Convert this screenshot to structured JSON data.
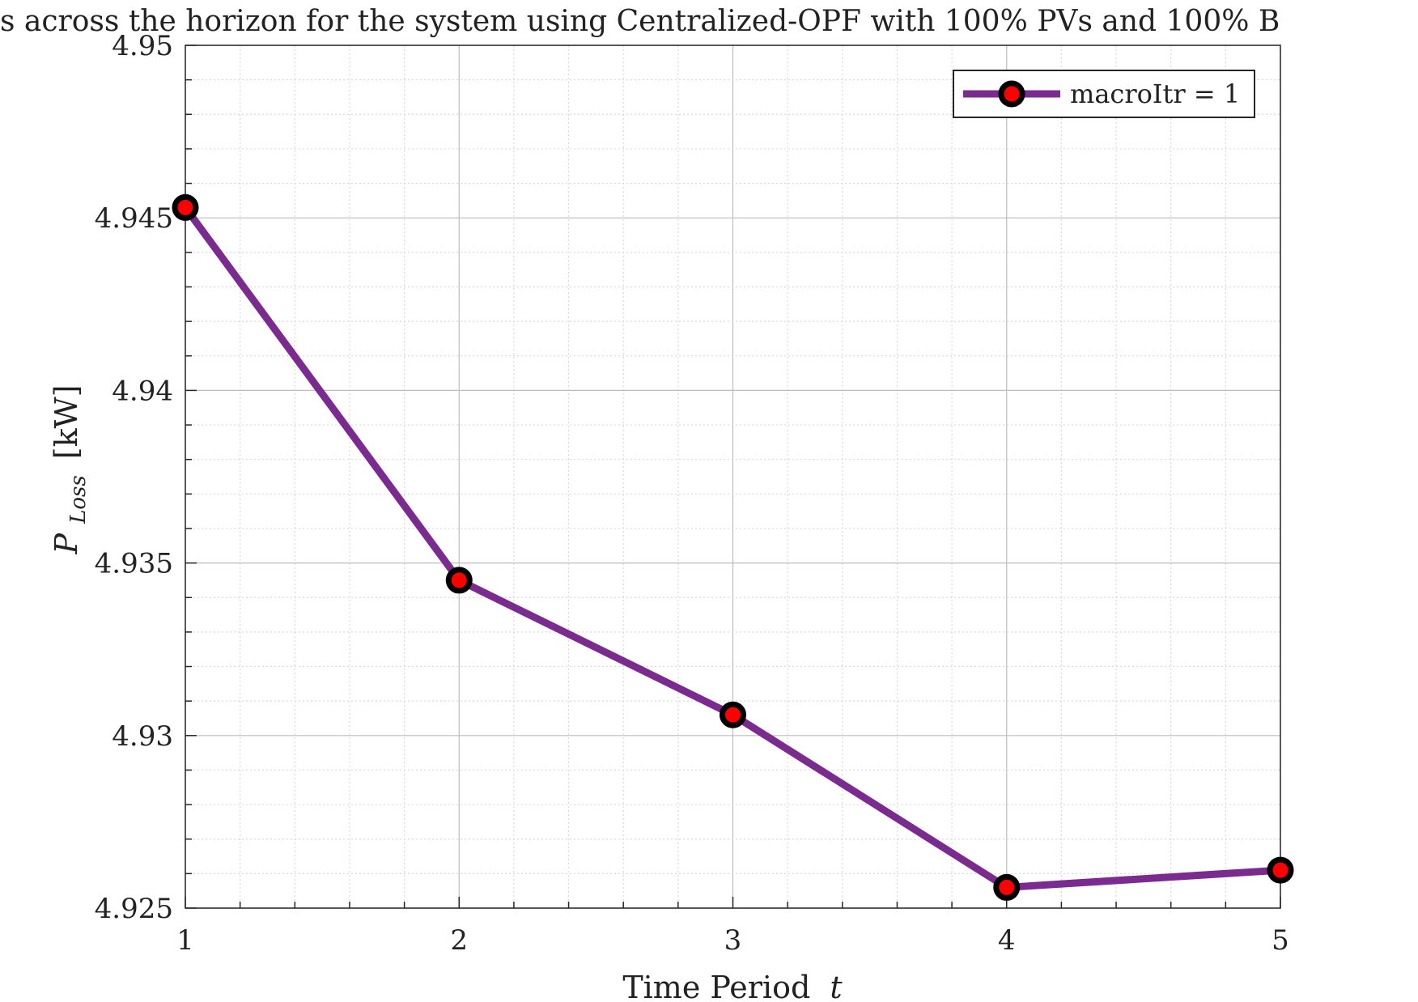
{
  "chart_data": {
    "type": "line",
    "title": "s across the horizon for the system using Centralized-OPF with 100% PVs and 100% B",
    "xlabel": "Time Period",
    "xlabel_var": "t",
    "ylabel_main": "P",
    "ylabel_sub": "Loss",
    "ylabel_unit": "[kW]",
    "x": [
      1,
      2,
      3,
      4,
      5
    ],
    "xlim": [
      1,
      5
    ],
    "ylim": [
      4.925,
      4.95
    ],
    "x_ticks": [
      "1",
      "2",
      "3",
      "4",
      "5"
    ],
    "y_ticks": [
      "4.925",
      "4.93",
      "4.935",
      "4.94",
      "4.945",
      "4.95"
    ],
    "grid": "major and minor (dotted)",
    "legend_position": "top-right",
    "series": [
      {
        "name": "macroItr = 1",
        "values": [
          4.9453,
          4.9345,
          4.9306,
          4.9256,
          4.9261
        ],
        "line_color": "#7b2a8f",
        "marker_face": "#ff0000",
        "marker_edge": "#000000"
      }
    ]
  }
}
